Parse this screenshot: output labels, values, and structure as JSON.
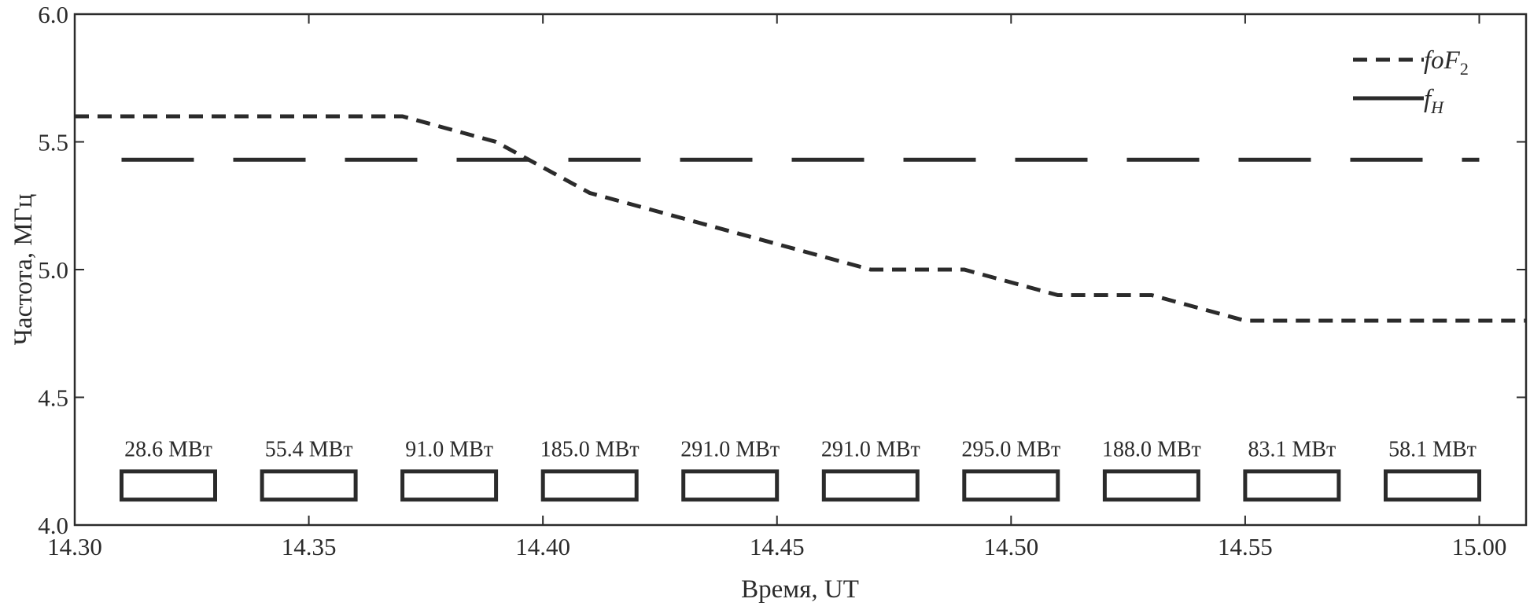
{
  "chart_data": {
    "type": "line",
    "xlabel": "Время, UT",
    "ylabel": "Частота, МГц",
    "xlim": [
      14.3,
      15.01
    ],
    "ylim": [
      4.0,
      6.0
    ],
    "x_ticks": [
      14.3,
      14.35,
      14.4,
      14.45,
      14.5,
      14.55,
      15.0
    ],
    "x_tick_labels": [
      "14.30",
      "14.35",
      "14.40",
      "14.45",
      "14.50",
      "14.55",
      "15.00"
    ],
    "y_ticks": [
      4.0,
      4.5,
      5.0,
      5.5,
      6.0
    ],
    "y_tick_labels": [
      "4.0",
      "4.5",
      "5.0",
      "5.5",
      "6.0"
    ],
    "grid": false,
    "legend_position": "top-right",
    "series": [
      {
        "name": "foF2",
        "name_main": "foF",
        "name_sub": "2",
        "style": "short-dash",
        "color": "#2b2b2b",
        "x": [
          14.3,
          14.37,
          14.39,
          14.4,
          14.41,
          14.43,
          14.45,
          14.47,
          14.49,
          14.51,
          14.53,
          14.55,
          15.01
        ],
        "y": [
          5.6,
          5.6,
          5.5,
          5.4,
          5.3,
          5.2,
          5.1,
          5.0,
          5.0,
          4.9,
          4.9,
          4.8,
          4.8
        ]
      },
      {
        "name": "fH",
        "name_main": "f",
        "name_sub": "H",
        "style": "long-dash",
        "color": "#2b2b2b",
        "x": [
          14.31,
          15.0
        ],
        "y": [
          5.43,
          5.43
        ]
      }
    ],
    "heating_sessions": [
      {
        "start": 14.31,
        "end": 14.33,
        "label": "28.6 МВт"
      },
      {
        "start": 14.34,
        "end": 14.36,
        "label": "55.4 МВт"
      },
      {
        "start": 14.37,
        "end": 14.39,
        "label": "91.0 МВт"
      },
      {
        "start": 14.4,
        "end": 14.42,
        "label": "185.0 МВт"
      },
      {
        "start": 14.43,
        "end": 14.45,
        "label": "291.0 МВт"
      },
      {
        "start": 14.46,
        "end": 14.48,
        "label": "291.0 МВт"
      },
      {
        "start": 14.49,
        "end": 14.51,
        "label": "295.0 МВт"
      },
      {
        "start": 14.52,
        "end": 14.54,
        "label": "188.0 МВт"
      },
      {
        "start": 14.55,
        "end": 14.57,
        "label": "83.1 МВт"
      },
      {
        "start": 14.58,
        "end": 15.0,
        "label": "58.1 МВт"
      }
    ]
  }
}
